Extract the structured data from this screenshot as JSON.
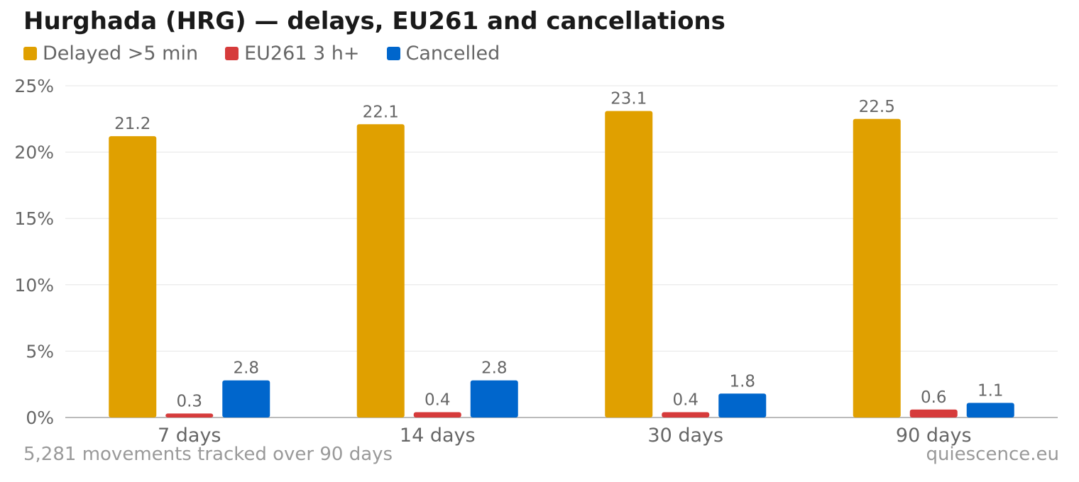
{
  "title": "Hurghada (HRG) — delays, EU261 and cancellations",
  "footer": {
    "left": "5,281 movements tracked over 90 days",
    "right": "quiescence.eu"
  },
  "legend": [
    {
      "label": "Delayed >5 min",
      "color": "#e0a000"
    },
    {
      "label": "EU261 3 h+",
      "color": "#d63b3b"
    },
    {
      "label": "Cancelled",
      "color": "#0066cc"
    }
  ],
  "chart_data": {
    "type": "bar",
    "categories": [
      "7 days",
      "14 days",
      "30 days",
      "90 days"
    ],
    "series": [
      {
        "name": "Delayed >5 min",
        "color": "#e0a000",
        "values": [
          21.2,
          22.1,
          23.1,
          22.5
        ]
      },
      {
        "name": "EU261 3 h+",
        "color": "#d63b3b",
        "values": [
          0.3,
          0.4,
          0.4,
          0.6
        ]
      },
      {
        "name": "Cancelled",
        "color": "#0066cc",
        "values": [
          2.8,
          2.8,
          1.8,
          1.1
        ]
      }
    ],
    "ylim": [
      0,
      25
    ],
    "yticks": [
      0,
      5,
      10,
      15,
      20,
      25
    ],
    "ytick_labels": [
      "0%",
      "5%",
      "10%",
      "15%",
      "20%",
      "25%"
    ],
    "grid": true,
    "legend_position": "top-left"
  }
}
